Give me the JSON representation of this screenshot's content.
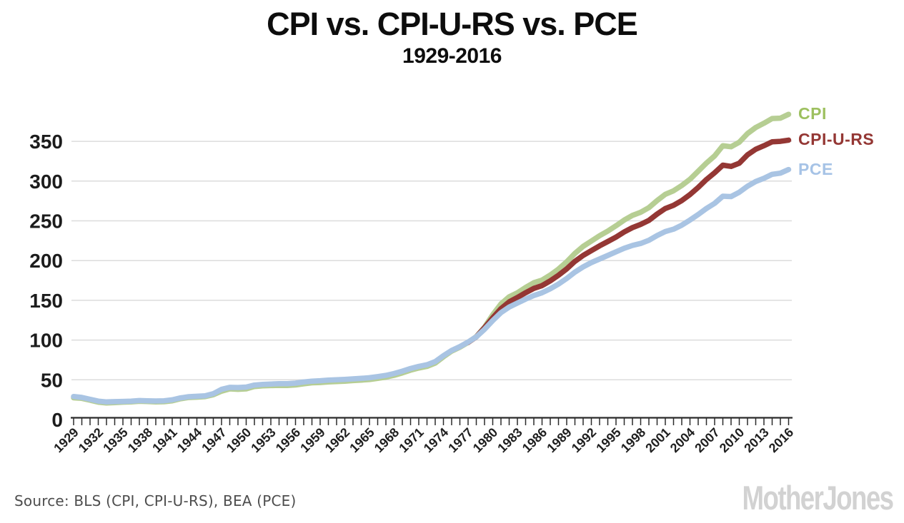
{
  "header": {
    "title": "CPI vs. CPI-U-RS vs. PCE",
    "subtitle": "1929-2016"
  },
  "footer": {
    "source": "Source:  BLS (CPI, CPI-U-RS), BEA (PCE)",
    "branding": "MotherJones"
  },
  "chart_data": {
    "type": "line",
    "title": "CPI vs. CPI-U-RS vs. PCE",
    "subtitle": "1929-2016",
    "xlabel": "",
    "ylabel": "",
    "grid": "horizontal-only",
    "legend_position": "right of line endpoints, colored text",
    "x_axis": {
      "range": [
        1929,
        2016
      ],
      "tick_every_years": 1,
      "label_every_years": 3,
      "tick_labels": [
        1929,
        1932,
        1935,
        1938,
        1941,
        1944,
        1947,
        1950,
        1953,
        1956,
        1959,
        1962,
        1965,
        1968,
        1971,
        1974,
        1977,
        1980,
        1983,
        1986,
        1989,
        1992,
        1995,
        1998,
        2001,
        2004,
        2007,
        2010,
        2013,
        2016
      ]
    },
    "y_axis": {
      "range": [
        0,
        390
      ],
      "tick_labels": [
        0,
        50,
        100,
        150,
        200,
        250,
        300,
        350
      ]
    },
    "colors": {
      "axis": "#2b2b2b",
      "gridline": "#dcdcdc",
      "tick_label": "#1f1f1f"
    },
    "series": [
      {
        "name": "CPI",
        "color": "#b6ce93",
        "label_color": "#9dc05f",
        "points": [
          [
            1929,
            27.4
          ],
          [
            1930,
            26.7
          ],
          [
            1931,
            24.3
          ],
          [
            1932,
            21.9
          ],
          [
            1933,
            20.8
          ],
          [
            1934,
            21.4
          ],
          [
            1935,
            21.9
          ],
          [
            1936,
            22.2
          ],
          [
            1937,
            23.0
          ],
          [
            1938,
            22.6
          ],
          [
            1939,
            22.2
          ],
          [
            1940,
            22.4
          ],
          [
            1941,
            23.5
          ],
          [
            1942,
            26.1
          ],
          [
            1943,
            27.7
          ],
          [
            1944,
            28.2
          ],
          [
            1945,
            28.8
          ],
          [
            1946,
            31.2
          ],
          [
            1947,
            35.7
          ],
          [
            1948,
            38.6
          ],
          [
            1949,
            38.1
          ],
          [
            1950,
            38.6
          ],
          [
            1951,
            41.6
          ],
          [
            1952,
            42.4
          ],
          [
            1953,
            42.7
          ],
          [
            1954,
            43.0
          ],
          [
            1955,
            42.9
          ],
          [
            1956,
            43.5
          ],
          [
            1957,
            45.0
          ],
          [
            1958,
            46.2
          ],
          [
            1959,
            46.6
          ],
          [
            1960,
            47.4
          ],
          [
            1961,
            47.8
          ],
          [
            1962,
            48.3
          ],
          [
            1963,
            49.0
          ],
          [
            1964,
            49.6
          ],
          [
            1965,
            50.4
          ],
          [
            1966,
            51.8
          ],
          [
            1967,
            53.4
          ],
          [
            1968,
            55.7
          ],
          [
            1969,
            58.7
          ],
          [
            1970,
            62.1
          ],
          [
            1971,
            64.8
          ],
          [
            1972,
            66.9
          ],
          [
            1973,
            71.0
          ],
          [
            1974,
            78.9
          ],
          [
            1975,
            86.1
          ],
          [
            1976,
            91.0
          ],
          [
            1977,
            97.0
          ],
          [
            1978,
            104.3
          ],
          [
            1979,
            116.2
          ],
          [
            1980,
            131.8
          ],
          [
            1981,
            145.4
          ],
          [
            1982,
            154.4
          ],
          [
            1983,
            159.4
          ],
          [
            1984,
            166.2
          ],
          [
            1985,
            172.2
          ],
          [
            1986,
            175.4
          ],
          [
            1987,
            181.8
          ],
          [
            1988,
            189.3
          ],
          [
            1989,
            198.4
          ],
          [
            1990,
            209.1
          ],
          [
            1991,
            217.9
          ],
          [
            1992,
            224.5
          ],
          [
            1993,
            231.2
          ],
          [
            1994,
            237.1
          ],
          [
            1995,
            243.8
          ],
          [
            1996,
            251.0
          ],
          [
            1997,
            256.8
          ],
          [
            1998,
            260.8
          ],
          [
            1999,
            266.6
          ],
          [
            2000,
            275.5
          ],
          [
            2001,
            283.4
          ],
          [
            2002,
            287.8
          ],
          [
            2003,
            294.4
          ],
          [
            2004,
            302.2
          ],
          [
            2005,
            312.5
          ],
          [
            2006,
            322.6
          ],
          [
            2007,
            331.7
          ],
          [
            2008,
            344.5
          ],
          [
            2009,
            343.2
          ],
          [
            2010,
            348.9
          ],
          [
            2011,
            359.8
          ],
          [
            2012,
            367.4
          ],
          [
            2013,
            372.8
          ],
          [
            2014,
            378.7
          ],
          [
            2015,
            379.2
          ],
          [
            2016,
            384.0
          ]
        ]
      },
      {
        "name": "CPI-U-RS",
        "color": "#943734",
        "label_color": "#943734",
        "points": [
          [
            1977,
            97.0
          ],
          [
            1978,
            104.0
          ],
          [
            1979,
            115.5
          ],
          [
            1980,
            128.0
          ],
          [
            1981,
            139.5
          ],
          [
            1982,
            148.0
          ],
          [
            1983,
            153.5
          ],
          [
            1984,
            159.5
          ],
          [
            1985,
            165.0
          ],
          [
            1986,
            168.5
          ],
          [
            1987,
            174.5
          ],
          [
            1988,
            181.5
          ],
          [
            1989,
            189.5
          ],
          [
            1990,
            199.0
          ],
          [
            1991,
            206.5
          ],
          [
            1992,
            212.5
          ],
          [
            1993,
            218.5
          ],
          [
            1994,
            224.0
          ],
          [
            1995,
            229.5
          ],
          [
            1996,
            236.0
          ],
          [
            1997,
            241.5
          ],
          [
            1998,
            245.5
          ],
          [
            1999,
            250.5
          ],
          [
            2000,
            258.5
          ],
          [
            2001,
            265.5
          ],
          [
            2002,
            269.5
          ],
          [
            2003,
            275.5
          ],
          [
            2004,
            283.0
          ],
          [
            2005,
            292.0
          ],
          [
            2006,
            302.0
          ],
          [
            2007,
            310.5
          ],
          [
            2008,
            320.0
          ],
          [
            2009,
            318.5
          ],
          [
            2010,
            322.5
          ],
          [
            2011,
            333.0
          ],
          [
            2012,
            340.0
          ],
          [
            2013,
            344.5
          ],
          [
            2014,
            349.5
          ],
          [
            2015,
            350.0
          ],
          [
            2016,
            351.5
          ]
        ]
      },
      {
        "name": "PCE",
        "color": "#a9c4e3",
        "label_color": "#a6c3e6",
        "points": [
          [
            1929,
            29.0
          ],
          [
            1930,
            27.8
          ],
          [
            1931,
            25.5
          ],
          [
            1932,
            23.2
          ],
          [
            1933,
            22.2
          ],
          [
            1934,
            22.5
          ],
          [
            1935,
            22.8
          ],
          [
            1936,
            23.1
          ],
          [
            1937,
            23.9
          ],
          [
            1938,
            23.5
          ],
          [
            1939,
            23.3
          ],
          [
            1940,
            23.6
          ],
          [
            1941,
            24.8
          ],
          [
            1942,
            27.2
          ],
          [
            1943,
            28.7
          ],
          [
            1944,
            29.3
          ],
          [
            1945,
            29.9
          ],
          [
            1946,
            32.5
          ],
          [
            1947,
            38.0
          ],
          [
            1948,
            40.5
          ],
          [
            1949,
            40.3
          ],
          [
            1950,
            40.8
          ],
          [
            1951,
            43.4
          ],
          [
            1952,
            44.2
          ],
          [
            1953,
            44.7
          ],
          [
            1954,
            45.1
          ],
          [
            1955,
            45.1
          ],
          [
            1956,
            45.8
          ],
          [
            1957,
            47.2
          ],
          [
            1958,
            48.3
          ],
          [
            1959,
            48.8
          ],
          [
            1960,
            49.6
          ],
          [
            1961,
            50.0
          ],
          [
            1962,
            50.5
          ],
          [
            1963,
            51.2
          ],
          [
            1964,
            51.8
          ],
          [
            1965,
            52.6
          ],
          [
            1966,
            54.0
          ],
          [
            1967,
            55.6
          ],
          [
            1968,
            57.9
          ],
          [
            1969,
            60.9
          ],
          [
            1970,
            64.2
          ],
          [
            1971,
            66.9
          ],
          [
            1972,
            68.9
          ],
          [
            1973,
            72.9
          ],
          [
            1974,
            80.3
          ],
          [
            1975,
            87.0
          ],
          [
            1976,
            91.7
          ],
          [
            1977,
            97.5
          ],
          [
            1978,
            104.0
          ],
          [
            1979,
            113.5
          ],
          [
            1980,
            124.5
          ],
          [
            1981,
            134.5
          ],
          [
            1982,
            141.5
          ],
          [
            1983,
            146.5
          ],
          [
            1984,
            151.5
          ],
          [
            1985,
            156.0
          ],
          [
            1986,
            159.5
          ],
          [
            1987,
            164.5
          ],
          [
            1988,
            170.5
          ],
          [
            1989,
            177.5
          ],
          [
            1990,
            185.5
          ],
          [
            1991,
            192.0
          ],
          [
            1992,
            197.5
          ],
          [
            1993,
            202.0
          ],
          [
            1994,
            206.5
          ],
          [
            1995,
            211.0
          ],
          [
            1996,
            215.5
          ],
          [
            1997,
            219.0
          ],
          [
            1998,
            221.5
          ],
          [
            1999,
            225.5
          ],
          [
            2000,
            231.5
          ],
          [
            2001,
            236.5
          ],
          [
            2002,
            239.5
          ],
          [
            2003,
            244.5
          ],
          [
            2004,
            251.0
          ],
          [
            2005,
            258.0
          ],
          [
            2006,
            265.5
          ],
          [
            2007,
            272.0
          ],
          [
            2008,
            281.0
          ],
          [
            2009,
            280.5
          ],
          [
            2010,
            286.0
          ],
          [
            2011,
            293.5
          ],
          [
            2012,
            299.5
          ],
          [
            2013,
            303.5
          ],
          [
            2014,
            308.5
          ],
          [
            2015,
            310.0
          ],
          [
            2016,
            314.5
          ]
        ]
      }
    ]
  }
}
